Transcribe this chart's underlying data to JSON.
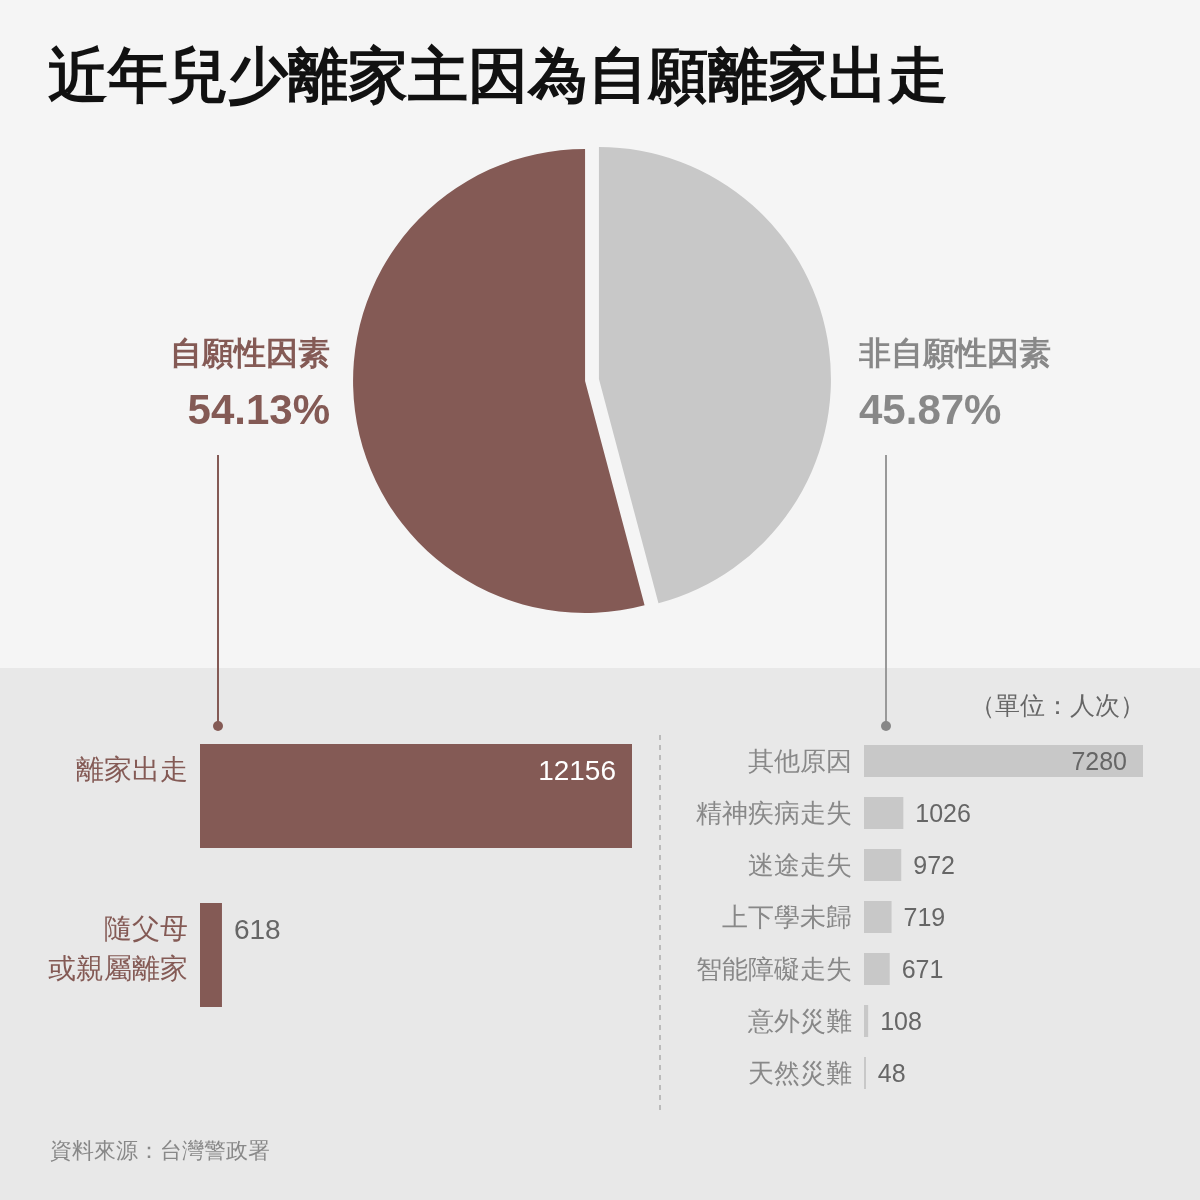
{
  "chart_data": [
    {
      "type": "pie",
      "title": "近年兒少離家主因為自願離家出走",
      "categories": [
        "自願性因素",
        "非自願性因素"
      ],
      "values": [
        54.13,
        45.87
      ],
      "colors": [
        "#845a55",
        "#c8c8c8"
      ],
      "value_labels": [
        "54.13%",
        "45.87%"
      ]
    },
    {
      "type": "bar",
      "orientation": "horizontal",
      "categories": [
        "離家出走",
        "隨父母或親屬離家"
      ],
      "values": [
        12156,
        618
      ],
      "color": "#845a55",
      "data_labels": true
    },
    {
      "type": "bar",
      "orientation": "horizontal",
      "subtitle": "（單位：人次）",
      "categories": [
        "其他原因",
        "精神疾病走失",
        "迷途走失",
        "上下學未歸",
        "智能障礙走失",
        "意外災難",
        "天然災難"
      ],
      "values": [
        7280,
        1026,
        972,
        719,
        671,
        108,
        48
      ],
      "color": "#c8c8c8",
      "data_labels": true,
      "annotations": [
        "資料來源：台灣警政署"
      ]
    }
  ]
}
